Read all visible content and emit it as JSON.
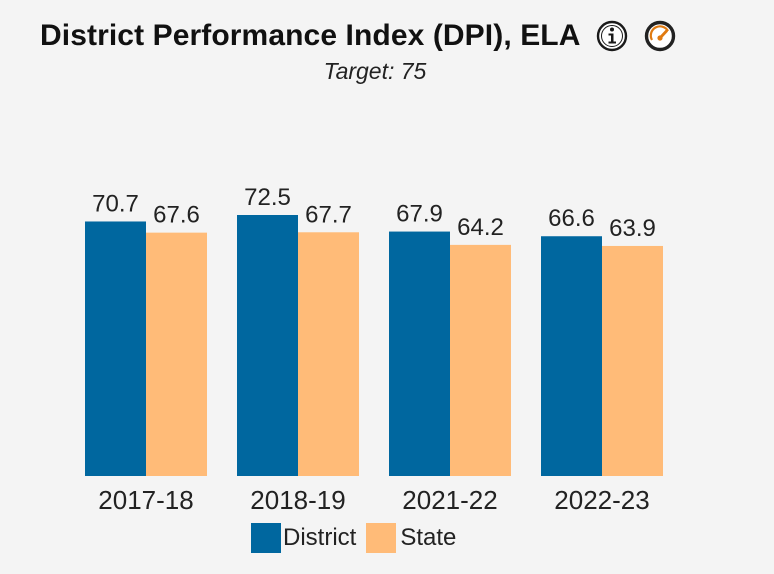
{
  "header": {
    "title": "District Performance Index (DPI), ELA",
    "subtitle": "Target: 75",
    "info_icon": "info-icon",
    "gauge_icon": "gauge-icon"
  },
  "colors": {
    "district": "#00679f",
    "state": "#ffbb78",
    "background": "#f4f4f4"
  },
  "chart_data": {
    "type": "bar",
    "title": "District Performance Index (DPI), ELA",
    "subtitle": "Target: 75",
    "categories": [
      "2017-18",
      "2018-19",
      "2021-22",
      "2022-23"
    ],
    "series": [
      {
        "name": "District",
        "values": [
          70.7,
          72.5,
          67.9,
          66.6
        ]
      },
      {
        "name": "State",
        "values": [
          67.6,
          67.7,
          64.2,
          63.9
        ]
      }
    ],
    "data_labels": true,
    "grid": false,
    "legend": "bottom-center",
    "xlabel": "",
    "ylabel": ""
  },
  "legend": {
    "items": [
      {
        "label": "District"
      },
      {
        "label": "State"
      }
    ]
  }
}
